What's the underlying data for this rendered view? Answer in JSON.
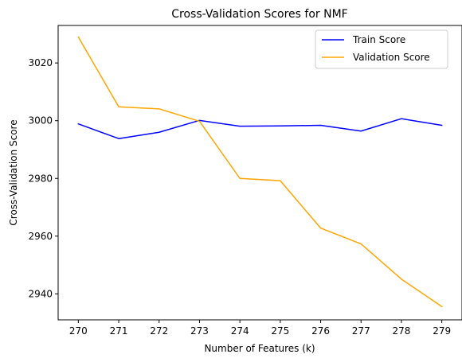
{
  "chart_data": {
    "type": "line",
    "title": "Cross-Validation Scores for NMF",
    "xlabel": "Number of Features (k)",
    "ylabel": "Cross-Validation Score",
    "x": [
      270,
      271,
      272,
      273,
      274,
      275,
      276,
      277,
      278,
      279
    ],
    "xlim": [
      269.5,
      279.5
    ],
    "ylim": [
      2931,
      3033
    ],
    "yticks": [
      2940,
      2960,
      2980,
      3000,
      3020
    ],
    "grid": false,
    "legend_position": "top-right",
    "series": [
      {
        "name": "Train Score",
        "color": "#0000ff",
        "values": [
          2998.9,
          2993.8,
          2996.0,
          3000.1,
          2998.1,
          2998.2,
          2998.4,
          2996.4,
          3000.7,
          2998.4
        ]
      },
      {
        "name": "Validation Score",
        "color": "#ffa500",
        "values": [
          3029.0,
          3004.8,
          3004.1,
          2999.8,
          2980.0,
          2979.2,
          2962.8,
          2957.3,
          2945.1,
          2935.6
        ]
      }
    ]
  }
}
